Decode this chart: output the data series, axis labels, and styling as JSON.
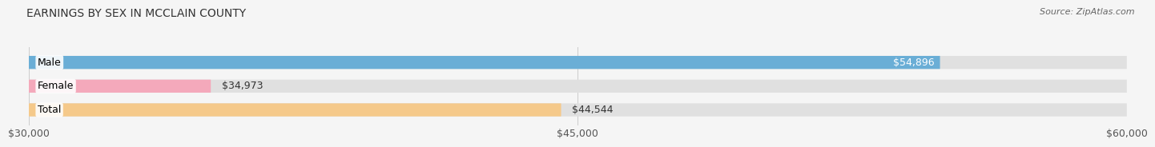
{
  "title": "EARNINGS BY SEX IN MCCLAIN COUNTY",
  "source": "Source: ZipAtlas.com",
  "categories": [
    "Male",
    "Female",
    "Total"
  ],
  "values": [
    54896,
    34973,
    44544
  ],
  "bar_colors": [
    "#6aaed6",
    "#f4a9bb",
    "#f5c98a"
  ],
  "label_inside": [
    true,
    false,
    false
  ],
  "xmin": 30000,
  "xmax": 60000,
  "xticks": [
    30000,
    45000,
    60000
  ],
  "xtick_labels": [
    "$30,000",
    "$45,000",
    "$60,000"
  ],
  "background_color": "#f5f5f5",
  "bar_bg_color": "#e0e0e0",
  "title_fontsize": 10,
  "source_fontsize": 8,
  "tick_fontsize": 9,
  "label_fontsize": 9,
  "category_fontsize": 9
}
